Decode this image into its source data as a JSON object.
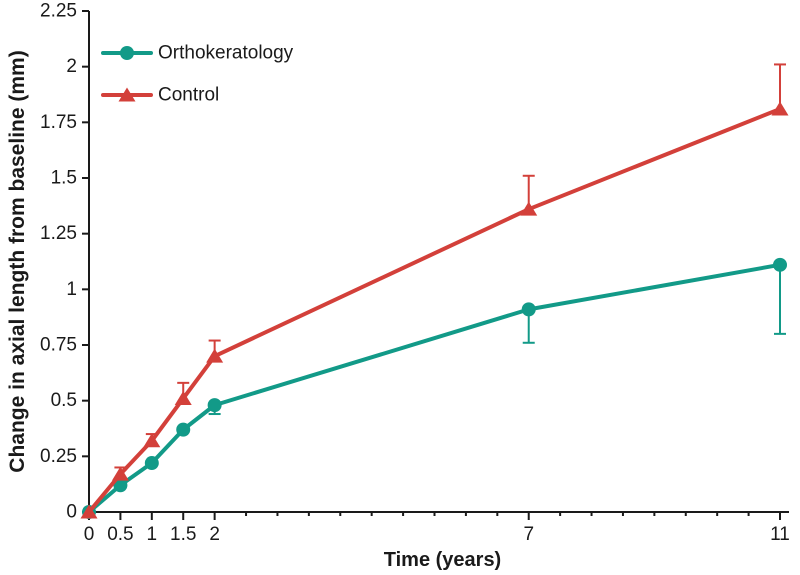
{
  "chart_data": {
    "type": "line",
    "title": "",
    "xlabel": "Time (years)",
    "ylabel": "Change in axial length from baseline (mm)",
    "x": [
      0,
      0.5,
      1,
      1.5,
      2,
      7,
      11
    ],
    "x_tick_labels": [
      "0",
      "0.5",
      "1",
      "1.5",
      "2",
      "7",
      "11"
    ],
    "x_minor_tick_step": 0.5,
    "y_ticks": [
      0,
      0.25,
      0.5,
      0.75,
      1,
      1.25,
      1.5,
      1.75,
      2,
      2.25
    ],
    "y_tick_labels": [
      "0",
      "0.25",
      "0.5",
      "0.75",
      "1",
      "1.25",
      "1.5",
      "1.75",
      "2",
      "2.25"
    ],
    "xlim": [
      0,
      11
    ],
    "ylim": [
      0,
      2.25
    ],
    "grid": false,
    "legend_position": "top-left-inside",
    "series": [
      {
        "name": "Orthokeratology",
        "marker": "circle",
        "color": "#129A88",
        "error_direction": "down",
        "values": [
          0,
          0.12,
          0.22,
          0.37,
          0.48,
          0.91,
          1.11
        ],
        "errors": [
          0,
          0,
          0,
          0,
          0.04,
          0.15,
          0.31
        ]
      },
      {
        "name": "Control",
        "marker": "triangle",
        "color": "#D3403A",
        "error_direction": "up",
        "values": [
          0,
          0.17,
          0.32,
          0.51,
          0.7,
          1.36,
          1.81
        ],
        "errors": [
          0,
          0.03,
          0.03,
          0.07,
          0.07,
          0.15,
          0.2
        ]
      }
    ],
    "axis_color": "#1a1a1a",
    "text_color": "#1a1a1a",
    "background_color": "#ffffff"
  }
}
